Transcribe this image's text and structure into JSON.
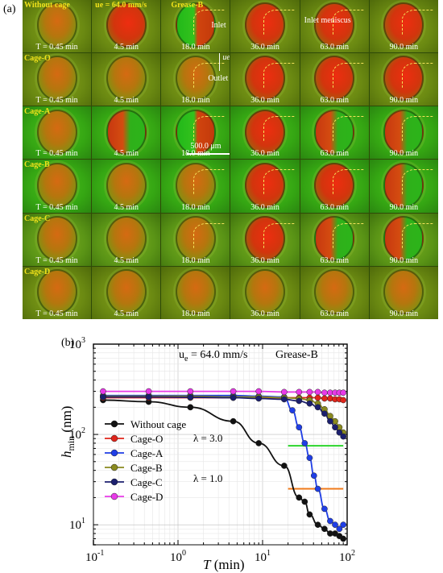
{
  "panel_a": {
    "label": "(a)",
    "times": [
      "T = 0.45 min",
      "4.5 min",
      "18.0 min",
      "36.0 min",
      "63.0 min",
      "90.0 min"
    ],
    "rows": [
      "Without cage",
      "Cage-O",
      "Cage-A",
      "Cage-B",
      "Cage-C",
      "Cage-D"
    ],
    "header_speed": "ue = 64.0 mm/s",
    "header_grease": "Grease-B",
    "inlet_meniscus": "Inlet meniscus",
    "inlet": "Inlet",
    "outlet": "Outlet",
    "ue": "ue",
    "scale": "500.0 μm"
  },
  "panel_b": {
    "label": "(b)",
    "speed": "u = 64.0 mm/s",
    "speed_sub": "e",
    "grease": "Grease-B",
    "ylabel_main": "h",
    "ylabel_sub": "min",
    "ylabel_unit": " (nm)",
    "xlabel_main": "T",
    "xlabel_unit": " (min)",
    "lambda3": "λ = 3.0",
    "lambda1": "λ = 1.0"
  },
  "chart_data": {
    "type": "scatter",
    "xlabel": "T (min)",
    "ylabel": "hmin (nm)",
    "xscale": "log",
    "yscale": "log",
    "xlim": [
      0.1,
      100
    ],
    "ylim": [
      6,
      1000
    ],
    "grid": true,
    "legend_position": "left",
    "series": [
      {
        "name": "Without cage",
        "color": "#111111",
        "x": [
          0.13,
          0.45,
          1.4,
          4.5,
          9.0,
          18.0,
          27.0,
          31.5,
          36.0,
          45.0,
          54.0,
          63.0,
          72.0,
          81.0,
          90.0
        ],
        "y": [
          240,
          230,
          200,
          140,
          80,
          45,
          20,
          18,
          13,
          10,
          9,
          8,
          8,
          7.5,
          7
        ]
      },
      {
        "name": "Cage-O",
        "color": "#e0241a",
        "x": [
          0.13,
          0.45,
          1.4,
          4.5,
          9.0,
          18.0,
          27.0,
          36.0,
          45.0,
          54.0,
          63.0,
          72.0,
          81.0,
          90.0
        ],
        "y": [
          255,
          255,
          255,
          255,
          255,
          255,
          255,
          255,
          255,
          250,
          250,
          245,
          245,
          240
        ]
      },
      {
        "name": "Cage-A",
        "color": "#1f3ee6",
        "x": [
          0.13,
          0.45,
          1.4,
          4.5,
          9.0,
          18.0,
          22.5,
          27.0,
          31.5,
          36.0,
          40.5,
          45.0,
          54.0,
          63.0,
          72.0,
          81.0,
          90.0
        ],
        "y": [
          270,
          270,
          270,
          270,
          265,
          260,
          185,
          120,
          80,
          55,
          35,
          25,
          15,
          11,
          10,
          9,
          10
        ]
      },
      {
        "name": "Cage-B",
        "color": "#8a8a1e",
        "x": [
          0.13,
          0.45,
          1.4,
          4.5,
          9.0,
          18.0,
          27.0,
          36.0,
          45.0,
          54.0,
          63.0,
          72.0,
          81.0,
          90.0
        ],
        "y": [
          265,
          265,
          265,
          260,
          260,
          255,
          250,
          240,
          220,
          190,
          160,
          140,
          120,
          105
        ]
      },
      {
        "name": "Cage-C",
        "color": "#1b1f6e",
        "x": [
          0.13,
          0.45,
          1.4,
          4.5,
          9.0,
          18.0,
          27.0,
          36.0,
          45.0,
          54.0,
          63.0,
          72.0,
          81.0,
          90.0
        ],
        "y": [
          260,
          260,
          258,
          255,
          250,
          245,
          235,
          220,
          200,
          170,
          140,
          120,
          105,
          95
        ]
      },
      {
        "name": "Cage-D",
        "color": "#e83ae8",
        "x": [
          0.13,
          0.45,
          1.4,
          4.5,
          9.0,
          18.0,
          27.0,
          36.0,
          45.0,
          54.0,
          63.0,
          72.0,
          81.0,
          90.0
        ],
        "y": [
          300,
          300,
          300,
          300,
          300,
          295,
          295,
          295,
          295,
          290,
          290,
          290,
          290,
          290
        ]
      }
    ],
    "reference_lines": [
      {
        "label": "λ = 3.0",
        "y": 75,
        "x_range": [
          20,
          90
        ],
        "color": "#2bd42b"
      },
      {
        "label": "λ = 1.0",
        "y": 25,
        "x_range": [
          20,
          90
        ],
        "color": "#f07a1a"
      }
    ],
    "x_ticks": [
      "10^-1",
      "10^0",
      "10^1",
      "10^2"
    ],
    "y_ticks": [
      "10^1",
      "10^2",
      "10^3"
    ]
  }
}
